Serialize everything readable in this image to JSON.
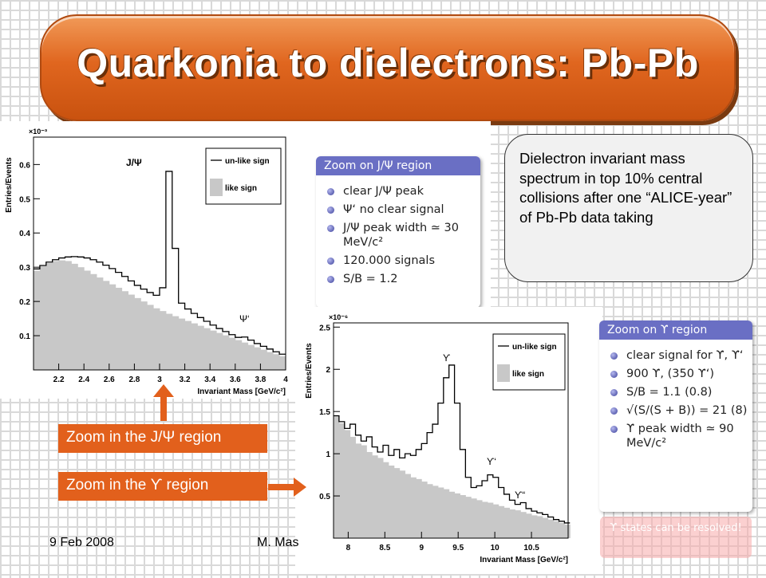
{
  "title": "Quarkonia to dielectrons: Pb-Pb",
  "description": "Dielectron invariant mass spectrum in top 10% central collisions after one “ALICE-year” of Pb-Pb data taking",
  "labels": {
    "jpsi_region": "Zoom in the J/Ψ region",
    "upsilon_region": "Zoom in the ϒ region"
  },
  "jpsi_zoom": {
    "header": "Zoom on J/Ψ region",
    "items": [
      "clear J/Ψ peak",
      "Ψ‘ no clear signal",
      "J/Ψ peak width ≃ 30 MeV/c²",
      "120.000 signals",
      "S/B = 1.2"
    ]
  },
  "upsilon_zoom": {
    "header": "Zoom on ϒ region",
    "items": [
      "clear signal for ϒ, ϒ‘",
      "900 ϒ, (350 ϒ‘)",
      "S/B = 1.1 (0.8)",
      "√(S/(S + B)) = 21 (8)",
      "ϒ peak width ≃ 90 MeV/c²"
    ],
    "note": "ϒ states can be resolved!"
  },
  "footer": {
    "date": "9 Feb 2008",
    "author": "M. Mas"
  },
  "colors": {
    "banner": "#e0661f",
    "label": "#e2601c",
    "header": "#6a6fc4",
    "fill": "#c8c8c8"
  },
  "chart_data": [
    {
      "type": "area",
      "exponent": "×10⁻³",
      "xlabel": "Invariant Mass [GeV/c²]",
      "ylabel": "Entries/Events",
      "xlim": [
        2.0,
        4.0
      ],
      "ylim": [
        0,
        0.68
      ],
      "xticks": [
        "2.2",
        "2.4",
        "2.6",
        "2.8",
        "3",
        "3.2",
        "3.4",
        "3.6",
        "3.8",
        "4"
      ],
      "yticks": [
        "0.1",
        "0.2",
        "0.3",
        "0.4",
        "0.5",
        "0.6"
      ],
      "legend": [
        "un-like sign",
        "like sign"
      ],
      "annotations": [
        "J/Ψ",
        "Ψ‘"
      ],
      "x": [
        2.0,
        2.05,
        2.1,
        2.15,
        2.2,
        2.25,
        2.3,
        2.35,
        2.4,
        2.45,
        2.5,
        2.55,
        2.6,
        2.65,
        2.7,
        2.75,
        2.8,
        2.85,
        2.9,
        2.95,
        3.0,
        3.05,
        3.1,
        3.15,
        3.2,
        3.25,
        3.3,
        3.35,
        3.4,
        3.45,
        3.5,
        3.55,
        3.6,
        3.65,
        3.7,
        3.75,
        3.8,
        3.85,
        3.9,
        3.95
      ],
      "series": [
        {
          "name": "un-like sign",
          "values": [
            0.295,
            0.305,
            0.315,
            0.322,
            0.327,
            0.33,
            0.331,
            0.33,
            0.327,
            0.322,
            0.315,
            0.306,
            0.296,
            0.285,
            0.273,
            0.26,
            0.247,
            0.236,
            0.226,
            0.218,
            0.24,
            0.58,
            0.355,
            0.195,
            0.178,
            0.165,
            0.153,
            0.142,
            0.131,
            0.121,
            0.112,
            0.103,
            0.095,
            0.096,
            0.087,
            0.077,
            0.069,
            0.061,
            0.053,
            0.046
          ]
        },
        {
          "name": "like sign",
          "values": [
            0.29,
            0.303,
            0.312,
            0.318,
            0.32,
            0.318,
            0.31,
            0.3,
            0.29,
            0.28,
            0.27,
            0.26,
            0.25,
            0.24,
            0.23,
            0.22,
            0.21,
            0.2,
            0.19,
            0.18,
            0.172,
            0.164,
            0.157,
            0.15,
            0.143,
            0.136,
            0.129,
            0.122,
            0.115,
            0.108,
            0.101,
            0.094,
            0.087,
            0.08,
            0.073,
            0.066,
            0.059,
            0.052,
            0.046,
            0.04
          ]
        }
      ]
    },
    {
      "type": "area",
      "exponent": "×10⁻⁶",
      "xlabel": "Invariant Mass [GeV/c²]",
      "ylabel": "Entries/Events",
      "xlim": [
        7.8,
        11.0
      ],
      "ylim": [
        0,
        2.55
      ],
      "xticks": [
        "8",
        "8.5",
        "9",
        "9.5",
        "10",
        "10.5"
      ],
      "yticks": [
        "0.5",
        "1",
        "1.5",
        "2",
        "2.5"
      ],
      "legend": [
        "un-like sign",
        "like sign"
      ],
      "annotations": [
        "ϒ",
        "ϒ‘",
        "ϒ“"
      ],
      "x": [
        7.8,
        7.875,
        7.95,
        8.025,
        8.1,
        8.175,
        8.25,
        8.325,
        8.4,
        8.475,
        8.55,
        8.625,
        8.7,
        8.775,
        8.85,
        8.925,
        9.0,
        9.075,
        9.15,
        9.225,
        9.3,
        9.375,
        9.45,
        9.525,
        9.6,
        9.675,
        9.75,
        9.825,
        9.9,
        9.975,
        10.05,
        10.125,
        10.2,
        10.275,
        10.35,
        10.425,
        10.5,
        10.575,
        10.65,
        10.725,
        10.8,
        10.875,
        10.95
      ],
      "series": [
        {
          "name": "un-like sign",
          "values": [
            1.45,
            1.38,
            1.3,
            1.35,
            1.22,
            1.15,
            1.2,
            1.08,
            1.02,
            1.1,
            0.98,
            1.05,
            0.95,
            1.0,
            0.98,
            1.05,
            1.12,
            1.25,
            1.35,
            1.6,
            1.9,
            2.05,
            1.6,
            1.05,
            0.72,
            0.6,
            0.62,
            0.68,
            0.75,
            0.72,
            0.6,
            0.52,
            0.45,
            0.4,
            0.42,
            0.35,
            0.32,
            0.3,
            0.28,
            0.25,
            0.22,
            0.2,
            0.18
          ]
        },
        {
          "name": "like sign",
          "values": [
            1.45,
            1.36,
            1.28,
            1.2,
            1.12,
            1.1,
            1.02,
            0.98,
            0.95,
            0.9,
            0.86,
            0.83,
            0.8,
            0.76,
            0.72,
            0.7,
            0.67,
            0.64,
            0.62,
            0.6,
            0.58,
            0.55,
            0.53,
            0.51,
            0.49,
            0.47,
            0.45,
            0.43,
            0.42,
            0.4,
            0.38,
            0.36,
            0.34,
            0.33,
            0.31,
            0.29,
            0.27,
            0.26,
            0.24,
            0.22,
            0.2,
            0.18,
            0.16
          ]
        }
      ]
    }
  ]
}
